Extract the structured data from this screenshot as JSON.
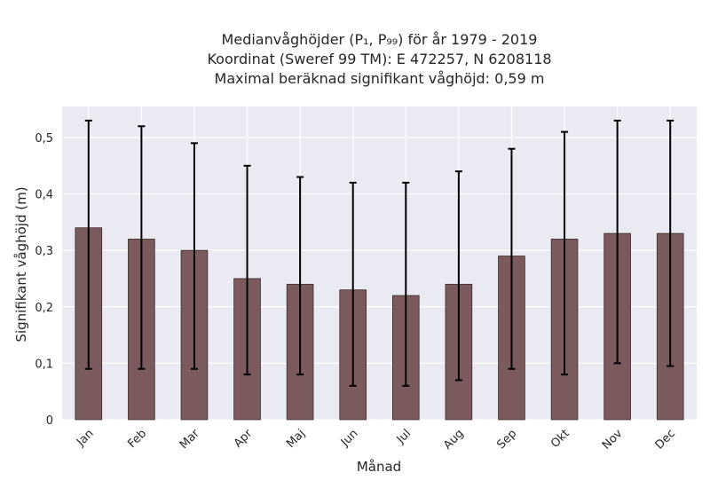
{
  "chart_data": {
    "type": "bar",
    "title_lines": [
      "Medianvåghöjder (P₁, P₉₉) för år 1979 - 2019",
      "Koordinat (Sweref 99 TM): E 472257, N 6208118",
      "Maximal beräknad signifikant våghöjd: 0,59 m"
    ],
    "xlabel": "Månad",
    "ylabel": "Signifikant våghöjd (m)",
    "categories": [
      "Jan",
      "Feb",
      "Mar",
      "Apr",
      "Maj",
      "Jun",
      "Jul",
      "Aug",
      "Sep",
      "Okt",
      "Nov",
      "Dec"
    ],
    "values": [
      0.34,
      0.32,
      0.3,
      0.25,
      0.24,
      0.23,
      0.22,
      0.24,
      0.29,
      0.32,
      0.33,
      0.33
    ],
    "error_low": [
      0.09,
      0.09,
      0.09,
      0.08,
      0.08,
      0.06,
      0.06,
      0.07,
      0.09,
      0.08,
      0.1,
      0.095
    ],
    "error_high": [
      0.53,
      0.52,
      0.49,
      0.45,
      0.43,
      0.42,
      0.42,
      0.44,
      0.48,
      0.51,
      0.53,
      0.53
    ],
    "ylim": [
      0,
      0.555
    ],
    "yticks": [
      0,
      0.1,
      0.2,
      0.3,
      0.4,
      0.5
    ],
    "ytick_labels": [
      "0",
      "0,1",
      "0,2",
      "0,3",
      "0,4",
      "0,5"
    ],
    "grid": true,
    "colors": {
      "bar": "#7a5a5c",
      "bar_edge": "#3d2a2b",
      "plot_bg": "#eaeaf2",
      "grid": "#ffffff",
      "errorbar": "#000000"
    }
  }
}
